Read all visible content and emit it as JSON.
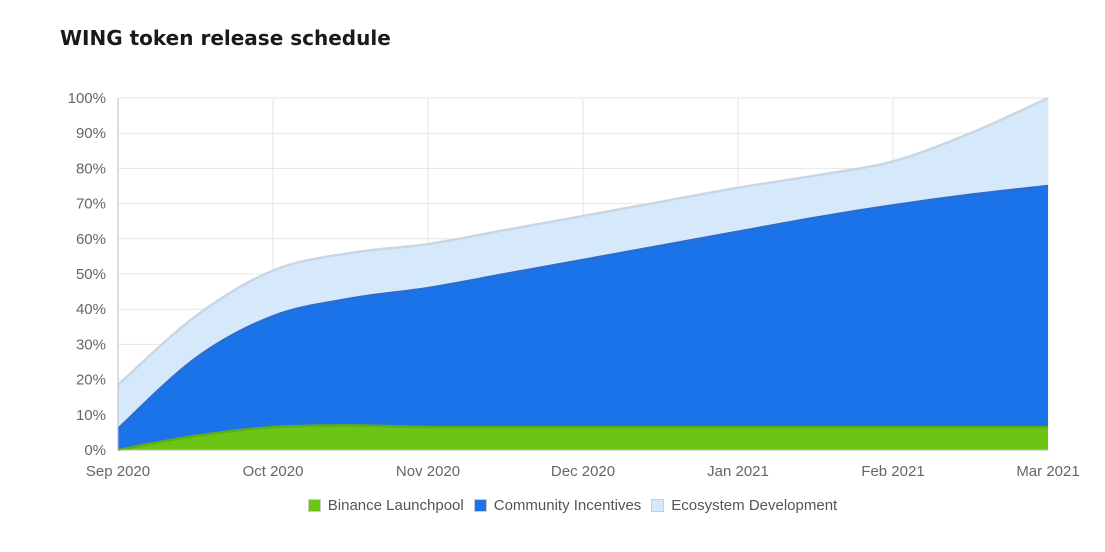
{
  "title": "WING token release schedule",
  "chart_data": {
    "type": "area",
    "stacked": true,
    "x": [
      "Sep 2020",
      "Sep 2020 (mid)",
      "Oct 2020",
      "Oct 2020 (mid)",
      "Nov 2020",
      "Nov 2020 (mid)",
      "Dec 2020",
      "Dec 2020 (mid)",
      "Jan 2021",
      "Jan 2021 (mid)",
      "Feb 2021",
      "Feb 2021 (mid)",
      "Mar 2021"
    ],
    "x_tick_labels": [
      "Sep 2020",
      "Oct 2020",
      "Nov 2020",
      "Dec 2020",
      "Jan 2021",
      "Feb 2021",
      "Mar 2021"
    ],
    "series": [
      {
        "name": "Binance Launchpool",
        "color": "#6cc514",
        "cumulative": [
          0,
          4,
          6.5,
          7,
          6.5,
          6.5,
          6.5,
          6.5,
          6.5,
          6.5,
          6.5,
          6.5,
          6.5
        ]
      },
      {
        "name": "Community Incentives",
        "color": "#1a73e8",
        "cumulative": [
          6,
          26,
          38,
          43,
          46,
          50,
          54,
          58,
          62,
          66,
          69.5,
          72.5,
          75
        ]
      },
      {
        "name": "Ecosystem Development",
        "color": "#d6e9fb",
        "cumulative": [
          18.5,
          38,
          51,
          56,
          58.5,
          62.5,
          66.5,
          70.5,
          74.5,
          78,
          82,
          90,
          100
        ]
      }
    ],
    "ylim": [
      0,
      100
    ],
    "y_ticks": [
      "0%",
      "10%",
      "20%",
      "30%",
      "40%",
      "50%",
      "60%",
      "70%",
      "80%",
      "90%",
      "100%"
    ],
    "grid": true,
    "legend_position": "bottom-center"
  }
}
